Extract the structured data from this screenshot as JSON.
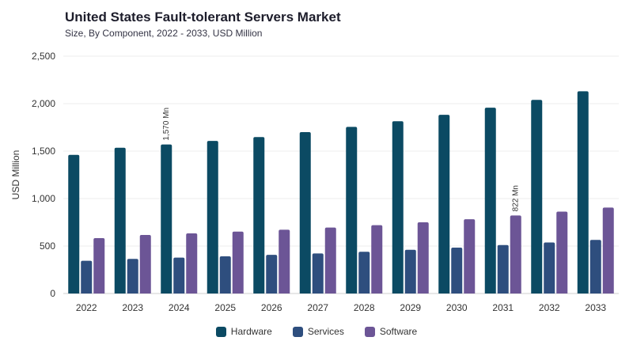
{
  "chart_data": {
    "type": "bar",
    "title": "United States Fault-tolerant Servers Market",
    "subtitle": "Size, By Component, 2022 - 2033, USD Million",
    "ylabel": "USD Million",
    "xlabel": "",
    "ylim": [
      0,
      2500
    ],
    "yticks": [
      "0",
      "500",
      "1,000",
      "1,500",
      "2,000",
      "2,500"
    ],
    "categories": [
      "2022",
      "2023",
      "2024",
      "2025",
      "2026",
      "2027",
      "2028",
      "2029",
      "2030",
      "2031",
      "2032",
      "2033"
    ],
    "series": [
      {
        "name": "Hardware",
        "color": "#0b4a63",
        "values": [
          1460,
          1535,
          1570,
          1607,
          1648,
          1700,
          1755,
          1815,
          1882,
          1957,
          2040,
          2130
        ]
      },
      {
        "name": "Services",
        "color": "#2e4e7e",
        "values": [
          345,
          365,
          378,
          392,
          407,
          422,
          440,
          460,
          483,
          510,
          537,
          565
        ]
      },
      {
        "name": "Software",
        "color": "#6c5596",
        "values": [
          583,
          617,
          633,
          652,
          672,
          695,
          720,
          750,
          782,
          822,
          862,
          905
        ]
      }
    ],
    "annotations": [
      {
        "category": "2024",
        "series": "Hardware",
        "text": "1,570 Mn"
      },
      {
        "category": "2031",
        "series": "Software",
        "text": "822 Mn"
      }
    ],
    "grid": true,
    "legend_position": "bottom"
  }
}
